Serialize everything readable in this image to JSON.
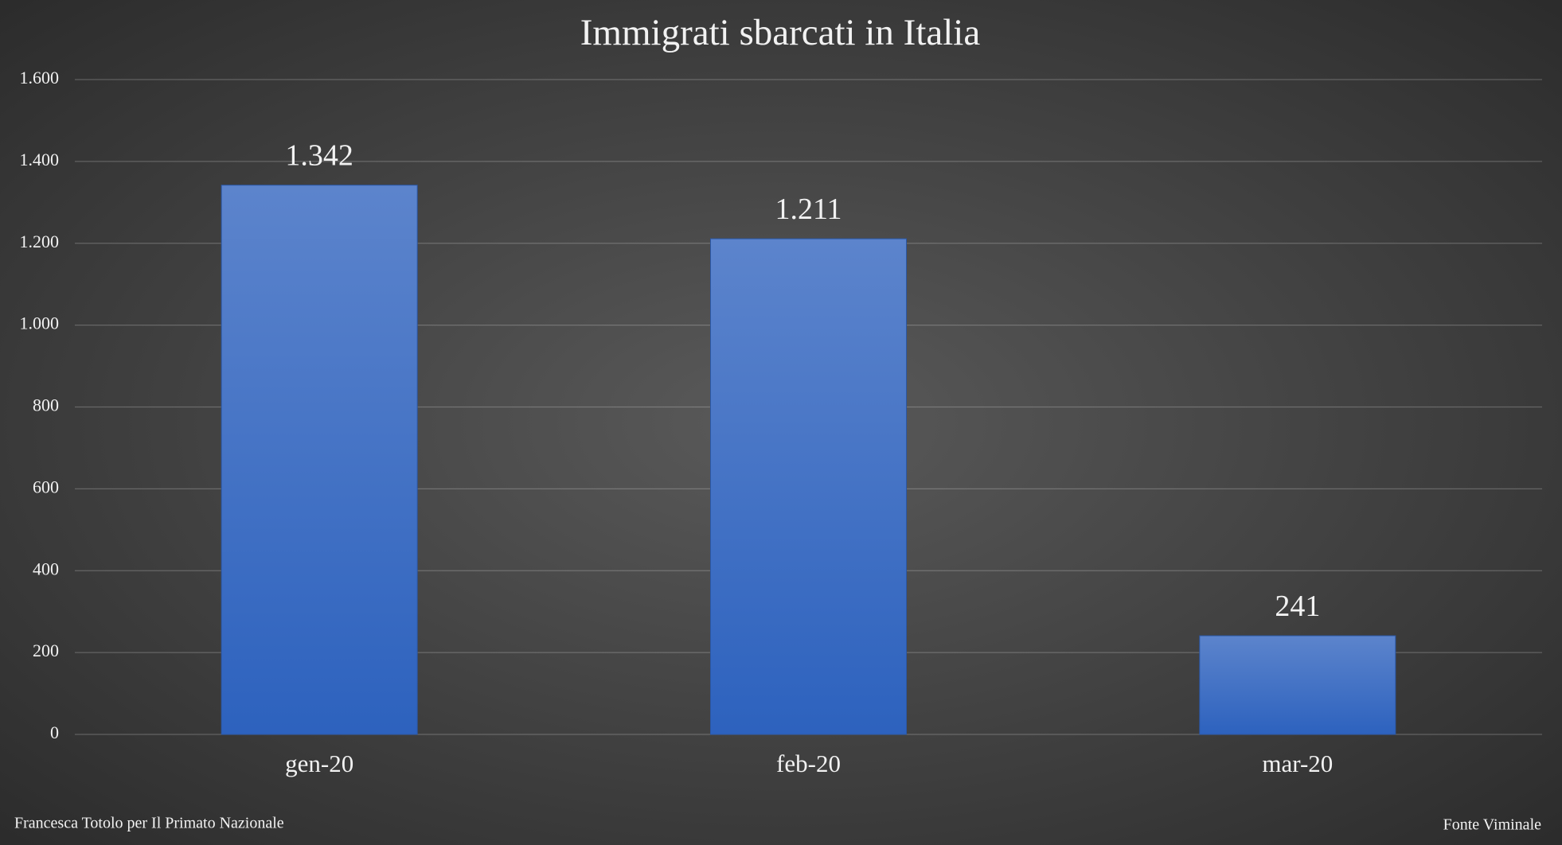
{
  "chart_data": {
    "type": "bar",
    "title": "Immigrati sbarcati in Italia",
    "categories": [
      "gen-20",
      "feb-20",
      "mar-20"
    ],
    "values": [
      1342,
      1211,
      241
    ],
    "value_labels": [
      "1.342",
      "1.211",
      "241"
    ],
    "color": "#3a6cc8",
    "ylim": [
      0,
      1600
    ],
    "yticks": [
      0,
      {
        "value": 200,
        "label": "200"
      },
      400,
      600,
      800,
      {
        "value": 1000,
        "label": "1.000"
      },
      {
        "value": 1200,
        "label": "1.200"
      },
      {
        "value": 1400,
        "label": "1.400"
      },
      {
        "value": 1600,
        "label": "1.600"
      }
    ],
    "grid": true,
    "author": "Francesca Totolo per Il Primato Nazionale",
    "source": "Fonte Viminale"
  }
}
